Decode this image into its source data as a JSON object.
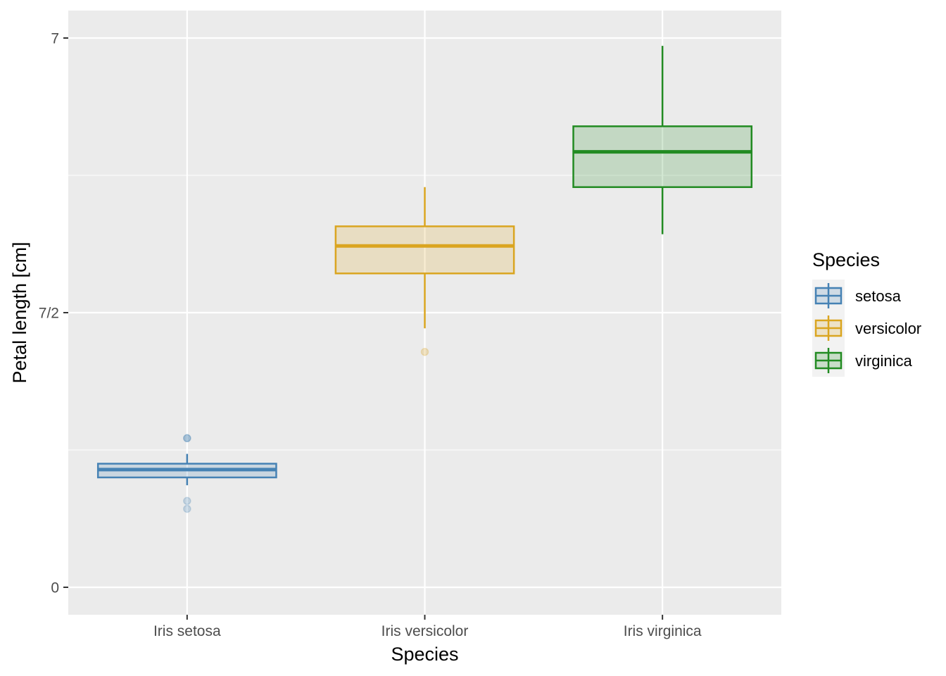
{
  "chart_data": {
    "type": "boxplot",
    "xlabel": "Species",
    "ylabel": "Petal length [cm]",
    "categories": [
      "Iris setosa",
      "Iris versicolor",
      "Iris virginica"
    ],
    "y_ticks": [
      {
        "value": 0,
        "label": "0"
      },
      {
        "value": 3.5,
        "label": "7/2"
      },
      {
        "value": 7,
        "label": "7"
      }
    ],
    "ylim": [
      -0.35,
      7.35
    ],
    "grid": true,
    "legend": {
      "title": "Species",
      "position": "right",
      "entries": [
        "setosa",
        "versicolor",
        "virginica"
      ]
    },
    "series": [
      {
        "category": "Iris setosa",
        "legend": "setosa",
        "color": "#4682B4",
        "whisker_low": 1.3,
        "q1": 1.4,
        "median": 1.5,
        "q3": 1.575,
        "whisker_high": 1.7,
        "outliers": [
          1.0,
          1.1,
          1.9,
          1.9
        ]
      },
      {
        "category": "Iris versicolor",
        "legend": "versicolor",
        "color": "#DAA520",
        "whisker_low": 3.3,
        "q1": 4.0,
        "median": 4.35,
        "q3": 4.6,
        "whisker_high": 5.1,
        "outliers": [
          3.0
        ]
      },
      {
        "category": "Iris virginica",
        "legend": "virginica",
        "color": "#228B22",
        "whisker_low": 4.5,
        "q1": 5.1,
        "median": 5.55,
        "q3": 5.875,
        "whisker_high": 6.9,
        "outliers": []
      }
    ]
  }
}
